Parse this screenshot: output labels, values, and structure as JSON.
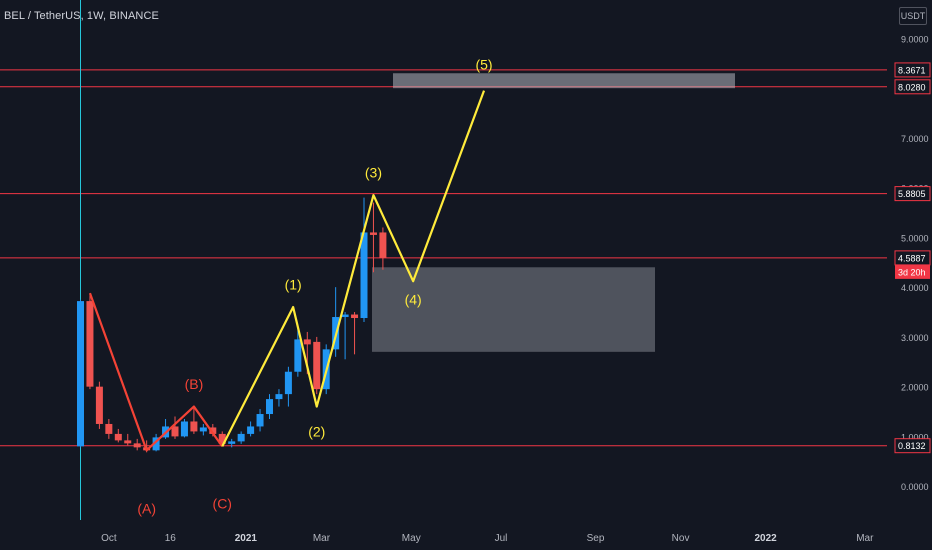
{
  "header": {
    "title": "BEL / TetherUS, 1W, BINANCE",
    "unit": "USDT"
  },
  "chart_data": {
    "type": "candlestick",
    "title": "BEL / TetherUS, 1W, BINANCE",
    "y_ticks": [
      "0.0000",
      "1.0000",
      "2.0000",
      "3.0000",
      "4.0000",
      "5.0000",
      "6.0000",
      "7.0000",
      "8.0000",
      "9.0000"
    ],
    "ylim": [
      -0.6,
      9.25
    ],
    "x_ticks": [
      "Oct",
      "16",
      "2021",
      "Mar",
      "May",
      "Jul",
      "Sep",
      "Nov",
      "2022",
      "Mar"
    ],
    "candles": [
      {
        "o": 0.8,
        "h": 3.75,
        "l": 0.78,
        "c": 3.72
      },
      {
        "o": 3.72,
        "h": 3.85,
        "l": 1.95,
        "c": 2.0
      },
      {
        "o": 2.0,
        "h": 2.1,
        "l": 1.15,
        "c": 1.25
      },
      {
        "o": 1.25,
        "h": 1.35,
        "l": 0.95,
        "c": 1.05
      },
      {
        "o": 1.05,
        "h": 1.15,
        "l": 0.88,
        "c": 0.92
      },
      {
        "o": 0.92,
        "h": 1.05,
        "l": 0.82,
        "c": 0.86
      },
      {
        "o": 0.86,
        "h": 0.95,
        "l": 0.72,
        "c": 0.78
      },
      {
        "o": 0.78,
        "h": 0.92,
        "l": 0.68,
        "c": 0.72
      },
      {
        "o": 0.72,
        "h": 1.05,
        "l": 0.7,
        "c": 0.98
      },
      {
        "o": 0.98,
        "h": 1.35,
        "l": 0.95,
        "c": 1.2
      },
      {
        "o": 1.2,
        "h": 1.4,
        "l": 0.95,
        "c": 1.0
      },
      {
        "o": 1.0,
        "h": 1.35,
        "l": 0.98,
        "c": 1.3
      },
      {
        "o": 1.3,
        "h": 1.6,
        "l": 1.05,
        "c": 1.1
      },
      {
        "o": 1.1,
        "h": 1.25,
        "l": 1.02,
        "c": 1.18
      },
      {
        "o": 1.18,
        "h": 1.25,
        "l": 1.0,
        "c": 1.05
      },
      {
        "o": 1.05,
        "h": 1.1,
        "l": 0.8,
        "c": 0.85
      },
      {
        "o": 0.85,
        "h": 0.95,
        "l": 0.78,
        "c": 0.9
      },
      {
        "o": 0.9,
        "h": 1.1,
        "l": 0.85,
        "c": 1.05
      },
      {
        "o": 1.05,
        "h": 1.3,
        "l": 1.0,
        "c": 1.2
      },
      {
        "o": 1.2,
        "h": 1.55,
        "l": 1.1,
        "c": 1.45
      },
      {
        "o": 1.45,
        "h": 1.85,
        "l": 1.35,
        "c": 1.75
      },
      {
        "o": 1.75,
        "h": 1.95,
        "l": 1.6,
        "c": 1.85
      },
      {
        "o": 1.85,
        "h": 2.4,
        "l": 1.6,
        "c": 2.3
      },
      {
        "o": 2.3,
        "h": 3.2,
        "l": 2.2,
        "c": 2.95
      },
      {
        "o": 2.95,
        "h": 3.1,
        "l": 2.25,
        "c": 2.85
      },
      {
        "o": 2.9,
        "h": 3.0,
        "l": 1.85,
        "c": 1.95
      },
      {
        "o": 1.95,
        "h": 2.85,
        "l": 1.85,
        "c": 2.75
      },
      {
        "o": 2.75,
        "h": 4.0,
        "l": 2.6,
        "c": 3.4
      },
      {
        "o": 3.4,
        "h": 3.5,
        "l": 2.55,
        "c": 3.45
      },
      {
        "o": 3.45,
        "h": 3.5,
        "l": 2.65,
        "c": 3.38
      },
      {
        "o": 3.38,
        "h": 5.8,
        "l": 3.3,
        "c": 5.1
      },
      {
        "o": 5.1,
        "h": 5.7,
        "l": 4.3,
        "c": 5.05
      },
      {
        "o": 5.1,
        "h": 5.2,
        "l": 4.35,
        "c": 4.59
      }
    ],
    "horizontal_levels": [
      {
        "value": 8.3671,
        "label": "8.3671"
      },
      {
        "value": 8.028,
        "label": "8.0280"
      },
      {
        "value": 5.8805,
        "label": "5.8805"
      },
      {
        "value": 4.5887,
        "label": "4.5887"
      },
      {
        "value": 0.8132,
        "label": "0.8132"
      }
    ],
    "countdown": "3d 20h",
    "correction_wave": {
      "labels": [
        "(A)",
        "(B)",
        "(C)"
      ]
    },
    "impulse_wave": {
      "labels": [
        "(1)",
        "(2)",
        "(3)",
        "(4)",
        "(5)"
      ]
    },
    "colors": {
      "background": "#131722",
      "up": "#2196f3",
      "down": "#ef5350",
      "level": "#f23645",
      "impulse": "#ffeb3b",
      "correction": "#f44336",
      "zone": "#b2b5be",
      "text": "#b2b5be",
      "cursor": "#26c6da"
    }
  }
}
